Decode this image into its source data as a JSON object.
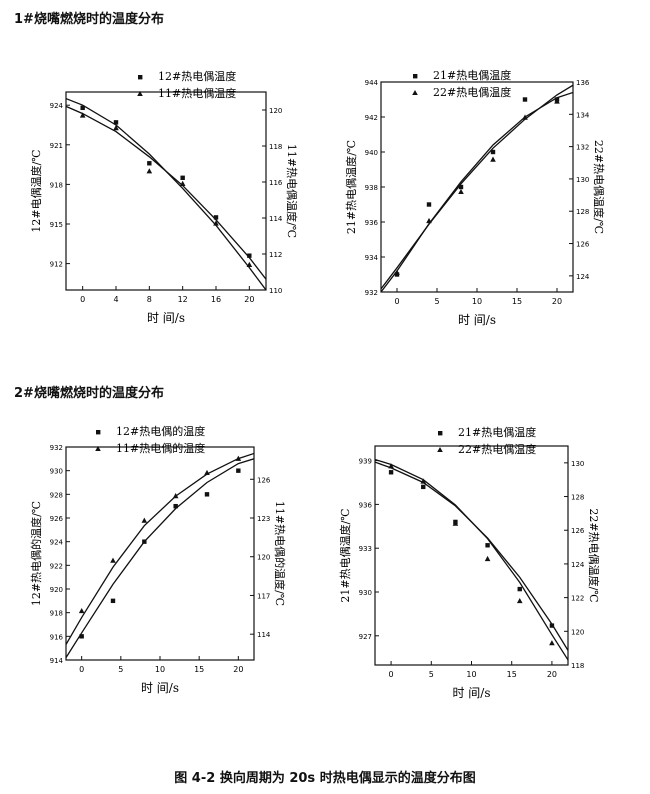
{
  "sections": [
    {
      "title": "1#烧嘴燃烧时的温度分布"
    },
    {
      "title": "2#烧嘴燃烧时的温度分布"
    }
  ],
  "caption": "图 4-2   换向周期为 20s 时热电偶显示的温度分布图",
  "chart_data": [
    {
      "type": "scatter",
      "xlabel": "时 间/s",
      "ylabel": "12#电偶温度/℃",
      "y2label": "11#热电偶温度/℃",
      "xlim": [
        -2,
        22
      ],
      "ylim": [
        910,
        925
      ],
      "y2lim": [
        110,
        121
      ],
      "xticks": [
        0,
        4,
        8,
        12,
        16,
        20
      ],
      "yticks": [
        912,
        915,
        918,
        921,
        924
      ],
      "y2ticks": [
        110,
        112,
        114,
        116,
        118,
        120
      ],
      "series": [
        {
          "name": "12#热电偶温度",
          "marker": "square",
          "axis": "left",
          "x": [
            0,
            4,
            8,
            12,
            16,
            20
          ],
          "y": [
            923.8,
            922.7,
            919.6,
            918.5,
            915.5,
            912.6
          ]
        },
        {
          "name": "11#热电偶温度",
          "marker": "triangle",
          "axis": "right",
          "x": [
            0,
            4,
            8,
            12,
            16,
            20
          ],
          "y": [
            119.7,
            119.0,
            116.6,
            115.9,
            113.7,
            111.4
          ]
        }
      ],
      "fit_lines": [
        {
          "axis": "left",
          "x": [
            -2,
            0,
            4,
            8,
            12,
            16,
            20,
            22
          ],
          "y": [
            924.5,
            924.0,
            922.5,
            920.3,
            917.7,
            914.9,
            911.7,
            910.0
          ]
        },
        {
          "axis": "right",
          "x": [
            -2,
            0,
            4,
            8,
            12,
            16,
            20,
            22
          ],
          "y": [
            120.2,
            119.8,
            118.8,
            117.4,
            115.8,
            113.9,
            111.8,
            110.6
          ]
        }
      ]
    },
    {
      "type": "scatter",
      "xlabel": "时 间/s",
      "ylabel": "21#热电偶温度/℃",
      "y2label": "22#热电偶温度/℃",
      "xlim": [
        -2,
        22
      ],
      "ylim": [
        932,
        944
      ],
      "y2lim": [
        123,
        136
      ],
      "xticks": [
        0,
        5,
        10,
        15,
        20
      ],
      "yticks": [
        932,
        934,
        936,
        938,
        940,
        942,
        944
      ],
      "y2ticks": [
        124,
        126,
        128,
        130,
        132,
        134,
        136
      ],
      "series": [
        {
          "name": "21#热电偶温度",
          "marker": "square",
          "axis": "left",
          "x": [
            0,
            4,
            8,
            12,
            16,
            20
          ],
          "y": [
            933.0,
            937.0,
            938.0,
            940.0,
            943.0,
            943.0
          ]
        },
        {
          "name": "22#热电偶温度",
          "marker": "triangle",
          "axis": "right",
          "x": [
            0,
            4,
            8,
            12,
            16,
            20
          ],
          "y": [
            124.2,
            127.4,
            129.2,
            131.2,
            133.8,
            134.8
          ]
        }
      ],
      "fit_lines": [
        {
          "axis": "left",
          "x": [
            -2,
            0,
            4,
            8,
            12,
            16,
            20,
            22
          ],
          "y": [
            932.0,
            933.2,
            935.9,
            938.3,
            940.4,
            942.0,
            943.1,
            943.4
          ]
        },
        {
          "axis": "right",
          "x": [
            -2,
            0,
            4,
            8,
            12,
            16,
            20,
            22
          ],
          "y": [
            123.2,
            124.5,
            127.2,
            129.7,
            131.9,
            133.7,
            135.2,
            135.8
          ]
        }
      ]
    },
    {
      "type": "scatter",
      "xlabel": "时 间/s",
      "ylabel": "12#热电偶的温度/℃",
      "y2label": "11#热电偶的温度/℃",
      "xlim": [
        -2,
        22
      ],
      "ylim": [
        914,
        932
      ],
      "y2lim": [
        112,
        128.5
      ],
      "xticks": [
        0,
        5,
        10,
        15,
        20
      ],
      "yticks": [
        914,
        916,
        918,
        920,
        922,
        924,
        926,
        928,
        930,
        932
      ],
      "y2ticks": [
        114,
        117,
        120,
        123,
        126
      ],
      "series": [
        {
          "name": "12#热电偶的温度",
          "marker": "square",
          "axis": "left",
          "x": [
            0,
            4,
            8,
            12,
            16,
            20
          ],
          "y": [
            916.0,
            919.0,
            924.0,
            927.0,
            928.0,
            930.0
          ]
        },
        {
          "name": "11#热电偶的温度",
          "marker": "triangle",
          "axis": "right",
          "x": [
            0,
            4,
            8,
            12,
            16,
            20
          ],
          "y": [
            115.8,
            119.7,
            122.8,
            124.7,
            126.5,
            127.6
          ]
        }
      ],
      "fit_lines": [
        {
          "axis": "left",
          "x": [
            -2,
            0,
            4,
            8,
            12,
            16,
            20,
            22
          ],
          "y": [
            914.2,
            916.3,
            920.4,
            924.0,
            926.8,
            929.0,
            930.6,
            931.0
          ]
        },
        {
          "axis": "right",
          "x": [
            -2,
            0,
            4,
            8,
            12,
            16,
            20,
            22
          ],
          "y": [
            113.2,
            115.3,
            119.2,
            122.4,
            124.7,
            126.4,
            127.6,
            128.0
          ]
        }
      ]
    },
    {
      "type": "scatter",
      "xlabel": "时 间/s",
      "ylabel": "21#热电偶温度/℃",
      "y2label": "22#热电偶温度/℃",
      "xlim": [
        -2,
        22
      ],
      "ylim": [
        925,
        940
      ],
      "y2lim": [
        118,
        131
      ],
      "xticks": [
        0,
        5,
        10,
        15,
        20
      ],
      "yticks": [
        927,
        930,
        933,
        936,
        939
      ],
      "y2ticks": [
        118,
        120,
        122,
        124,
        126,
        128,
        130
      ],
      "series": [
        {
          "name": "21#热电偶温度",
          "marker": "square",
          "axis": "left",
          "x": [
            0,
            4,
            8,
            12,
            16,
            20
          ],
          "y": [
            938.2,
            937.2,
            934.8,
            933.2,
            930.2,
            927.7
          ]
        },
        {
          "name": "22#热电偶温度",
          "marker": "triangle",
          "axis": "right",
          "x": [
            0,
            4,
            8,
            12,
            16,
            20
          ],
          "y": [
            129.8,
            128.9,
            126.4,
            124.3,
            121.8,
            119.3
          ]
        }
      ],
      "fit_lines": [
        {
          "axis": "left",
          "x": [
            -2,
            0,
            4,
            8,
            12,
            16,
            20,
            22
          ],
          "y": [
            938.9,
            938.5,
            937.5,
            935.9,
            933.7,
            931.0,
            927.8,
            926.0
          ]
        },
        {
          "axis": "right",
          "x": [
            -2,
            0,
            4,
            8,
            12,
            16,
            20,
            22
          ],
          "y": [
            130.2,
            129.9,
            129.0,
            127.5,
            125.5,
            122.9,
            119.8,
            118.3
          ]
        }
      ]
    }
  ]
}
